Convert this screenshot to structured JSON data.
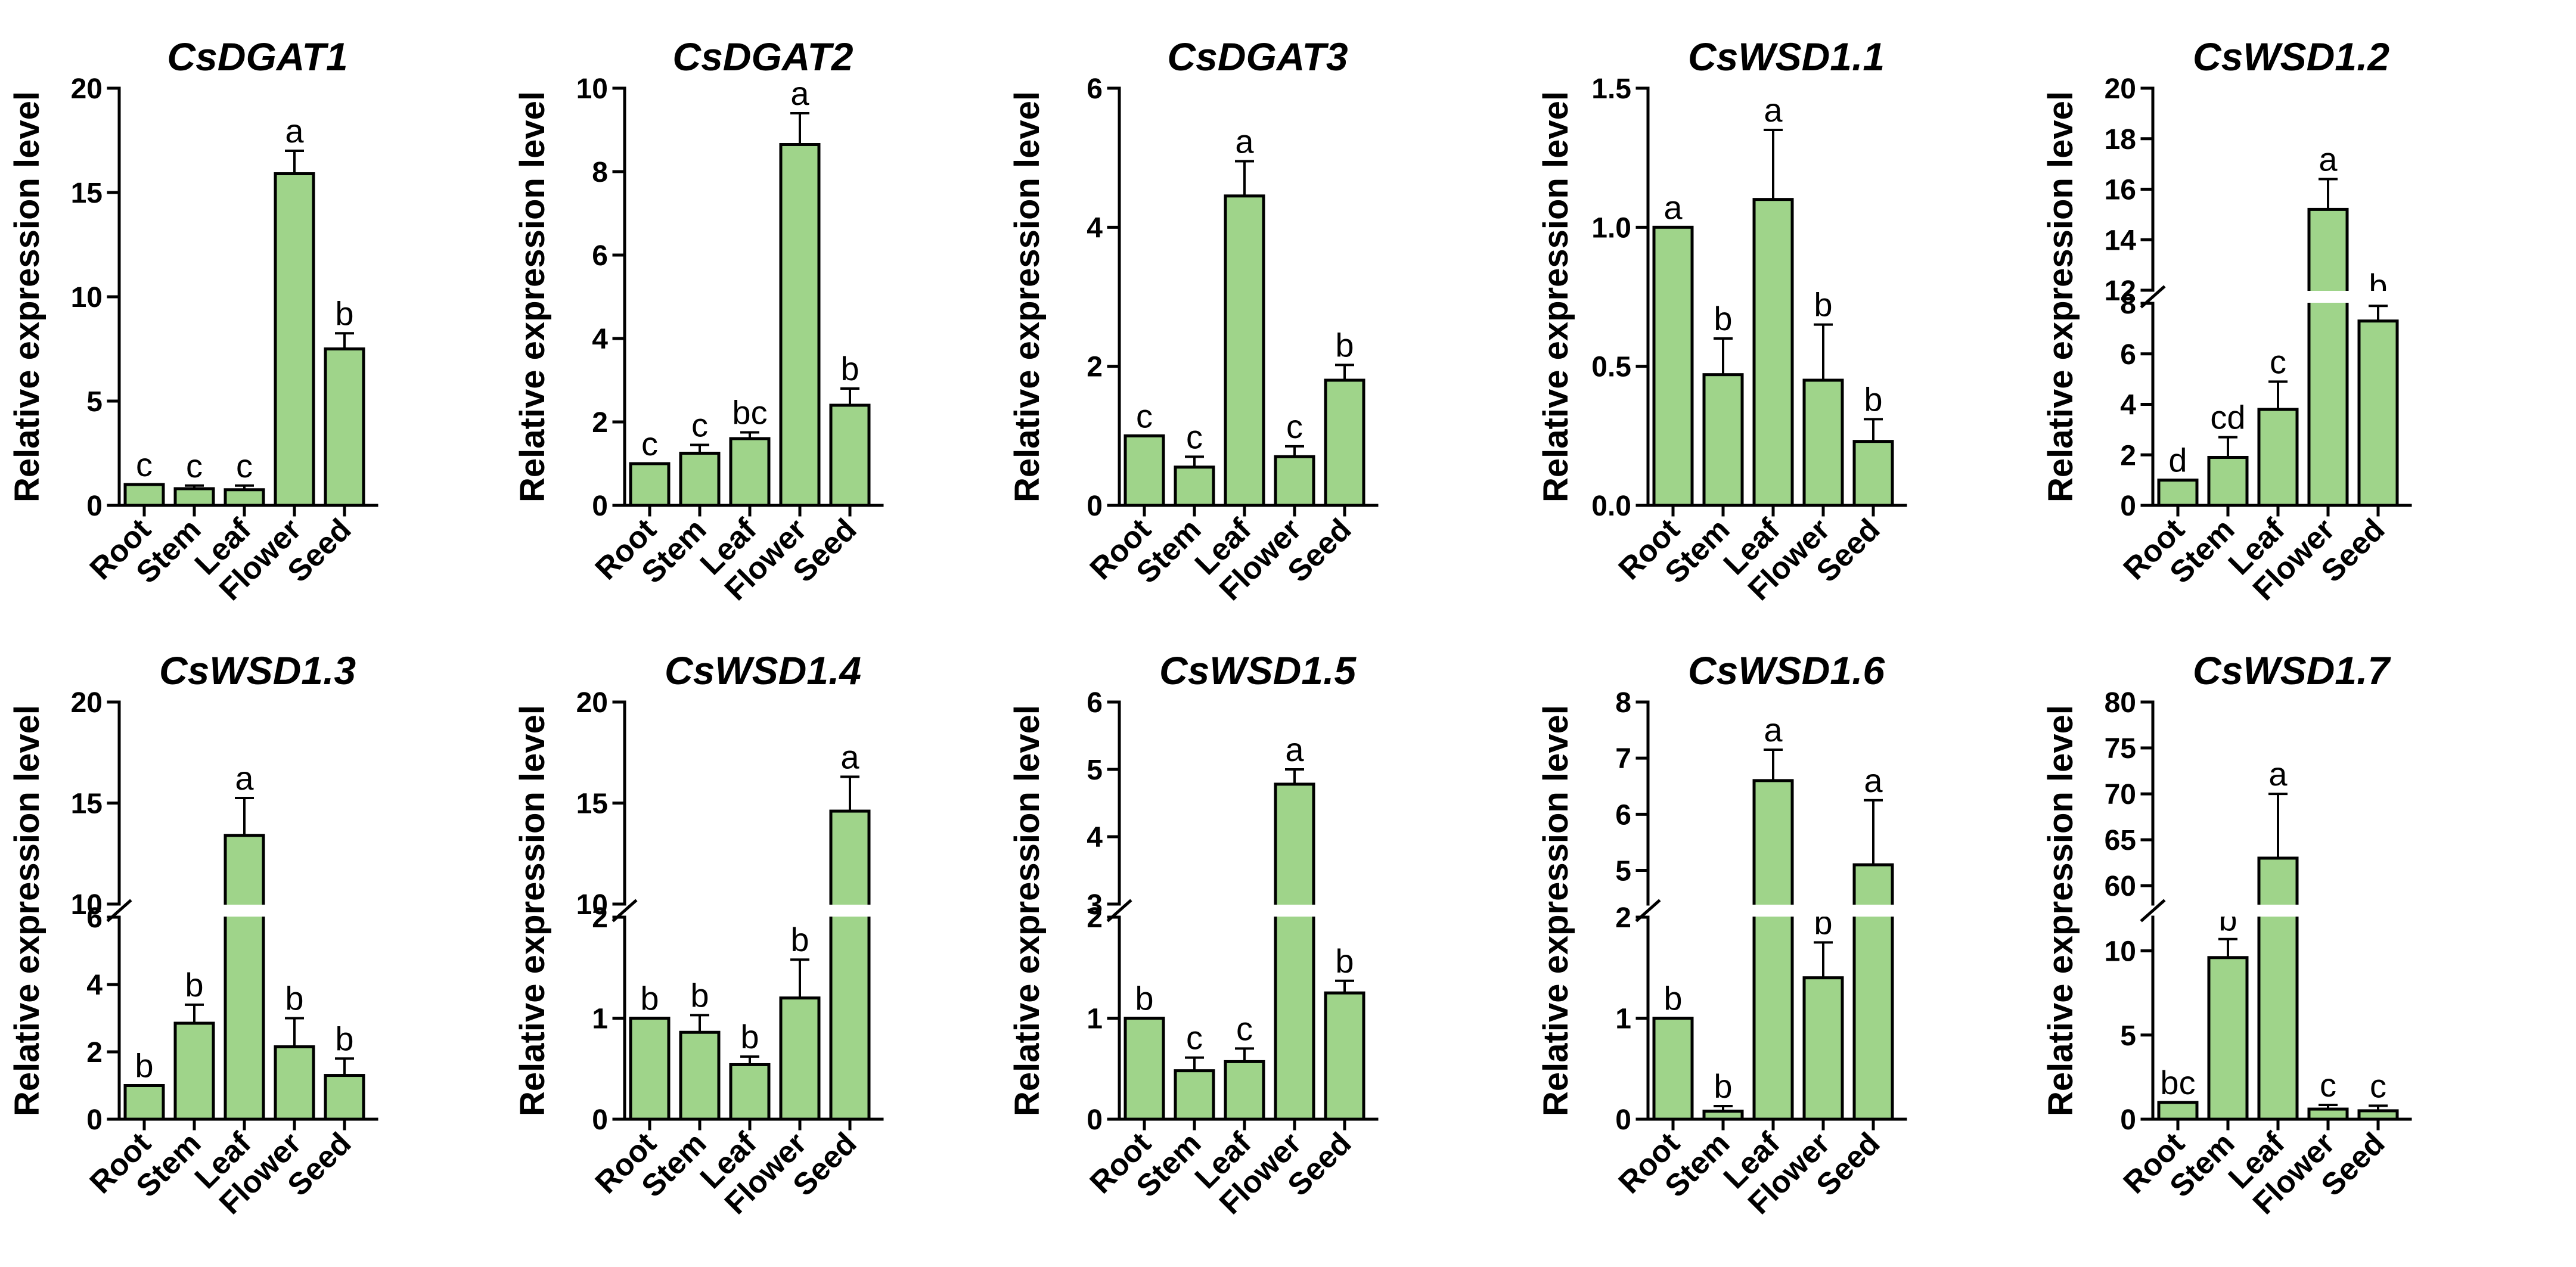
{
  "figure": {
    "y_axis_label": "Relative expression level",
    "bar_color": "#9fd48a",
    "axis_color": "#000000"
  },
  "chart_data": [
    {
      "type": "bar",
      "title": "CsDGAT1",
      "ylabel": "Relative expression level",
      "categories": [
        "Root",
        "Stem",
        "Leaf",
        "Flower",
        "Seed"
      ],
      "values": [
        1.0,
        0.8,
        0.75,
        15.9,
        7.5
      ],
      "errors": [
        0.0,
        0.15,
        0.2,
        1.1,
        0.75
      ],
      "letters": [
        "c",
        "c",
        "c",
        "a",
        "b"
      ],
      "ylim": [
        0,
        20
      ],
      "ticks": [
        0,
        5,
        10,
        15,
        20
      ],
      "tick_labels": [
        "0",
        "5",
        "10",
        "15",
        "20"
      ]
    },
    {
      "type": "bar",
      "title": "CsDGAT2",
      "ylabel": "Relative expression level",
      "categories": [
        "Root",
        "Stem",
        "Leaf",
        "Flower",
        "Seed"
      ],
      "values": [
        1.0,
        1.25,
        1.6,
        8.65,
        2.4
      ],
      "errors": [
        0.0,
        0.2,
        0.15,
        0.75,
        0.4
      ],
      "letters": [
        "c",
        "c",
        "bc",
        "a",
        "b"
      ],
      "ylim": [
        0,
        10
      ],
      "ticks": [
        0,
        2,
        4,
        6,
        8,
        10
      ],
      "tick_labels": [
        "0",
        "2",
        "4",
        "6",
        "8",
        "10"
      ]
    },
    {
      "type": "bar",
      "title": "CsDGAT3",
      "ylabel": "Relative expression level",
      "categories": [
        "Root",
        "Stem",
        "Leaf",
        "Flower",
        "Seed"
      ],
      "values": [
        1.0,
        0.55,
        4.45,
        0.7,
        1.8
      ],
      "errors": [
        0.0,
        0.15,
        0.5,
        0.15,
        0.22
      ],
      "letters": [
        "c",
        "c",
        "a",
        "c",
        "b"
      ],
      "ylim": [
        0,
        6
      ],
      "ticks": [
        0,
        2,
        4,
        6
      ],
      "tick_labels": [
        "0",
        "2",
        "4",
        "6"
      ]
    },
    {
      "type": "bar",
      "title": "CsWSD1.1",
      "ylabel": "Relative expression level",
      "categories": [
        "Root",
        "Stem",
        "Leaf",
        "Flower",
        "Seed"
      ],
      "values": [
        1.0,
        0.47,
        1.1,
        0.45,
        0.23
      ],
      "errors": [
        0.0,
        0.13,
        0.25,
        0.2,
        0.08
      ],
      "letters": [
        "a",
        "b",
        "a",
        "b",
        "b"
      ],
      "ylim": [
        0,
        1.5
      ],
      "ticks": [
        0,
        0.5,
        1.0,
        1.5
      ],
      "tick_labels": [
        "0.0",
        "0.5",
        "1.0",
        "1.5"
      ]
    },
    {
      "type": "bar",
      "title": "CsWSD1.2",
      "ylabel": "Relative expression level",
      "categories": [
        "Root",
        "Stem",
        "Leaf",
        "Flower",
        "Seed"
      ],
      "values": [
        1.0,
        1.9,
        3.8,
        15.2,
        7.3
      ],
      "errors": [
        0.0,
        0.8,
        1.1,
        1.2,
        0.6
      ],
      "letters": [
        "d",
        "cd",
        "c",
        "a",
        "b"
      ],
      "ylim": [
        0,
        20
      ],
      "axis_break": [
        8,
        12
      ],
      "ticks": [
        0,
        2,
        4,
        6,
        8,
        12,
        14,
        16,
        18,
        20
      ],
      "tick_labels": [
        "0",
        "2",
        "4",
        "6",
        "8",
        "12",
        "14",
        "16",
        "18",
        "20"
      ]
    },
    {
      "type": "bar",
      "title": "CsWSD1.3",
      "ylabel": "Relative expression level",
      "categories": [
        "Root",
        "Stem",
        "Leaf",
        "Flower",
        "Seed"
      ],
      "values": [
        1.0,
        2.85,
        13.4,
        2.15,
        1.3
      ],
      "errors": [
        0.0,
        0.55,
        1.85,
        0.85,
        0.5
      ],
      "letters": [
        "b",
        "b",
        "a",
        "b",
        "b"
      ],
      "ylim": [
        0,
        20
      ],
      "axis_break": [
        6,
        10
      ],
      "ticks": [
        0,
        2,
        4,
        6,
        10,
        15,
        20
      ],
      "tick_labels": [
        "0",
        "2",
        "4",
        "6",
        "10",
        "15",
        "20"
      ]
    },
    {
      "type": "bar",
      "title": "CsWSD1.4",
      "ylabel": "Relative expression level",
      "categories": [
        "Root",
        "Stem",
        "Leaf",
        "Flower",
        "Seed"
      ],
      "values": [
        1.0,
        0.86,
        0.54,
        1.2,
        14.6
      ],
      "errors": [
        0.0,
        0.17,
        0.08,
        0.38,
        1.7
      ],
      "letters": [
        "b",
        "b",
        "b",
        "b",
        "a"
      ],
      "ylim": [
        0,
        20
      ],
      "axis_break": [
        2,
        10
      ],
      "ticks": [
        0,
        1,
        2,
        10,
        15,
        20
      ],
      "tick_labels": [
        "0",
        "1",
        "2",
        "10",
        "15",
        "20"
      ]
    },
    {
      "type": "bar",
      "title": "CsWSD1.5",
      "ylabel": "Relative expression level",
      "categories": [
        "Root",
        "Stem",
        "Leaf",
        "Flower",
        "Seed"
      ],
      "values": [
        1.0,
        0.48,
        0.57,
        4.78,
        1.25
      ],
      "errors": [
        0.0,
        0.13,
        0.13,
        0.22,
        0.12
      ],
      "letters": [
        "b",
        "c",
        "c",
        "a",
        "b"
      ],
      "ylim": [
        0,
        6
      ],
      "axis_break": [
        2,
        3
      ],
      "ticks": [
        0,
        1,
        2,
        3,
        4,
        5,
        6
      ],
      "tick_labels": [
        "0",
        "1",
        "2",
        "3",
        "4",
        "5",
        "6"
      ]
    },
    {
      "type": "bar",
      "title": "CsWSD1.6",
      "ylabel": "Relative expression level",
      "categories": [
        "Root",
        "Stem",
        "Leaf",
        "Flower",
        "Seed"
      ],
      "values": [
        1.0,
        0.08,
        6.6,
        1.4,
        5.1
      ],
      "errors": [
        0.0,
        0.05,
        0.55,
        0.35,
        1.15
      ],
      "letters": [
        "b",
        "b",
        "a",
        "b",
        "a"
      ],
      "ylim": [
        0,
        8
      ],
      "axis_break": [
        2,
        4.4
      ],
      "ticks": [
        0,
        1,
        2,
        5,
        6,
        7,
        8
      ],
      "tick_labels": [
        "0",
        "1",
        "2",
        "5",
        "6",
        "7",
        "8"
      ]
    },
    {
      "type": "bar",
      "title": "CsWSD1.7",
      "ylabel": "Relative expression level",
      "categories": [
        "Root",
        "Stem",
        "Leaf",
        "Flower",
        "Seed"
      ],
      "values": [
        1.0,
        9.6,
        63.0,
        0.6,
        0.5
      ],
      "errors": [
        0.0,
        1.1,
        7.0,
        0.25,
        0.3
      ],
      "letters": [
        "bc",
        "b",
        "a",
        "c",
        "c"
      ],
      "ylim": [
        0,
        80
      ],
      "axis_break": [
        12,
        58
      ],
      "ticks": [
        0,
        5,
        10,
        60,
        65,
        70,
        75,
        80
      ],
      "tick_labels": [
        "0",
        "5",
        "10",
        "60",
        "65",
        "70",
        "75",
        "80"
      ]
    }
  ]
}
